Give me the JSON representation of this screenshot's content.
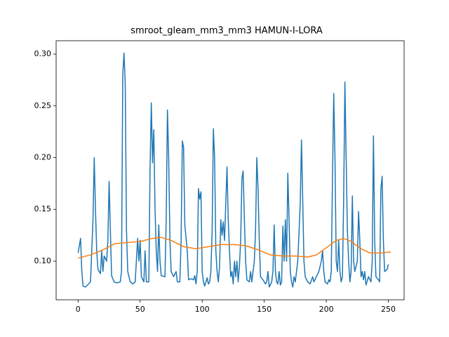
{
  "chart_data": {
    "type": "line",
    "title": "smroot_gleam_mm3_mm3 HAMUN-I-LORA",
    "xlim": [
      -17.7,
      262.7
    ],
    "ylim": [
      0.0627,
      0.3129
    ],
    "xticks": [
      0,
      50,
      100,
      150,
      200,
      250
    ],
    "yticks": [
      {
        "value": 0.1,
        "label": "0.10"
      },
      {
        "value": 0.15,
        "label": "0.15"
      },
      {
        "value": 0.2,
        "label": "0.20"
      },
      {
        "value": 0.25,
        "label": "0.25"
      },
      {
        "value": 0.3,
        "label": "0.30"
      }
    ],
    "series": [
      {
        "color": "#1f77b4",
        "x": [
          0,
          2,
          3,
          4,
          6,
          10,
          12,
          13,
          14,
          15,
          16,
          18,
          19,
          20,
          21,
          23,
          24,
          25,
          26,
          27,
          29,
          31,
          34,
          35,
          36,
          37,
          38,
          39,
          40,
          42,
          44,
          46,
          48,
          49,
          50,
          51,
          53,
          54,
          55,
          57,
          58,
          59,
          60,
          61,
          62,
          63,
          64,
          65,
          66,
          67,
          70,
          71,
          72,
          73,
          74,
          75,
          77,
          79,
          80,
          82,
          83,
          84,
          85,
          86,
          88,
          89,
          91,
          93,
          94,
          95,
          96,
          97,
          98,
          99,
          100,
          101,
          102,
          103,
          104,
          105,
          106,
          107,
          108,
          109,
          110,
          111,
          112,
          113,
          114,
          115,
          116,
          117,
          118,
          120,
          121,
          122,
          123,
          124,
          125,
          126,
          127,
          128,
          129,
          130,
          131,
          132,
          133,
          134,
          135,
          136,
          138,
          139,
          140,
          142,
          143,
          144,
          145,
          146,
          147,
          149,
          151,
          152,
          153,
          154,
          156,
          157,
          158,
          159,
          160,
          161,
          162,
          163,
          164,
          165,
          166,
          167,
          168,
          169,
          170,
          171,
          172,
          173,
          174,
          175,
          176,
          177,
          179,
          180,
          181,
          182,
          183,
          185,
          187,
          189,
          190,
          192,
          194,
          196,
          197,
          198,
          199,
          201,
          202,
          203,
          204,
          205,
          206,
          207,
          208,
          209,
          210,
          211,
          212,
          213,
          214,
          215,
          216,
          217,
          218,
          219,
          220,
          221,
          222,
          223,
          225,
          226,
          227,
          228,
          229,
          230,
          231,
          232,
          234,
          236,
          237,
          238,
          239,
          240,
          242,
          243,
          244,
          245,
          246,
          247,
          249,
          250
        ],
        "values": [
          0.108,
          0.122,
          0.09,
          0.076,
          0.075,
          0.08,
          0.14,
          0.2,
          0.15,
          0.11,
          0.092,
          0.088,
          0.11,
          0.09,
          0.105,
          0.1,
          0.12,
          0.177,
          0.13,
          0.086,
          0.08,
          0.079,
          0.08,
          0.09,
          0.28,
          0.301,
          0.27,
          0.13,
          0.09,
          0.08,
          0.078,
          0.08,
          0.122,
          0.1,
          0.12,
          0.085,
          0.08,
          0.11,
          0.08,
          0.08,
          0.19,
          0.253,
          0.195,
          0.227,
          0.15,
          0.11,
          0.09,
          0.135,
          0.1,
          0.086,
          0.085,
          0.14,
          0.246,
          0.2,
          0.12,
          0.09,
          0.085,
          0.09,
          0.08,
          0.08,
          0.12,
          0.216,
          0.21,
          0.135,
          0.11,
          0.082,
          0.083,
          0.082,
          0.086,
          0.078,
          0.09,
          0.17,
          0.16,
          0.167,
          0.09,
          0.08,
          0.076,
          0.08,
          0.084,
          0.078,
          0.08,
          0.09,
          0.128,
          0.228,
          0.2,
          0.11,
          0.09,
          0.08,
          0.095,
          0.14,
          0.125,
          0.138,
          0.12,
          0.191,
          0.14,
          0.11,
          0.085,
          0.09,
          0.078,
          0.1,
          0.085,
          0.1,
          0.08,
          0.095,
          0.12,
          0.18,
          0.187,
          0.14,
          0.1,
          0.082,
          0.08,
          0.09,
          0.08,
          0.1,
          0.13,
          0.2,
          0.17,
          0.12,
          0.085,
          0.082,
          0.078,
          0.08,
          0.09,
          0.075,
          0.08,
          0.09,
          0.135,
          0.09,
          0.08,
          0.078,
          0.09,
          0.077,
          0.08,
          0.134,
          0.1,
          0.14,
          0.1,
          0.185,
          0.14,
          0.09,
          0.08,
          0.075,
          0.085,
          0.08,
          0.09,
          0.1,
          0.155,
          0.217,
          0.16,
          0.1,
          0.085,
          0.08,
          0.078,
          0.085,
          0.08,
          0.085,
          0.09,
          0.1,
          0.11,
          0.09,
          0.08,
          0.078,
          0.082,
          0.08,
          0.09,
          0.18,
          0.262,
          0.2,
          0.1,
          0.09,
          0.12,
          0.09,
          0.08,
          0.085,
          0.16,
          0.273,
          0.2,
          0.13,
          0.1,
          0.08,
          0.09,
          0.163,
          0.1,
          0.09,
          0.1,
          0.148,
          0.12,
          0.085,
          0.09,
          0.082,
          0.09,
          0.077,
          0.085,
          0.08,
          0.1,
          0.221,
          0.12,
          0.085,
          0.082,
          0.08,
          0.17,
          0.182,
          0.12,
          0.09,
          0.092,
          0.097
        ]
      },
      {
        "color": "#ff7f0e",
        "x": [
          0,
          10,
          20,
          30,
          40,
          50,
          60,
          67,
          75,
          85,
          95,
          105,
          115,
          125,
          135,
          145,
          155,
          165,
          175,
          185,
          192,
          200,
          208,
          214,
          220,
          228,
          235,
          245,
          252
        ],
        "values": [
          0.103,
          0.106,
          0.111,
          0.117,
          0.118,
          0.119,
          0.122,
          0.123,
          0.12,
          0.114,
          0.112,
          0.114,
          0.116,
          0.116,
          0.115,
          0.111,
          0.106,
          0.105,
          0.105,
          0.104,
          0.106,
          0.113,
          0.12,
          0.122,
          0.119,
          0.112,
          0.108,
          0.108,
          0.109
        ]
      }
    ]
  }
}
